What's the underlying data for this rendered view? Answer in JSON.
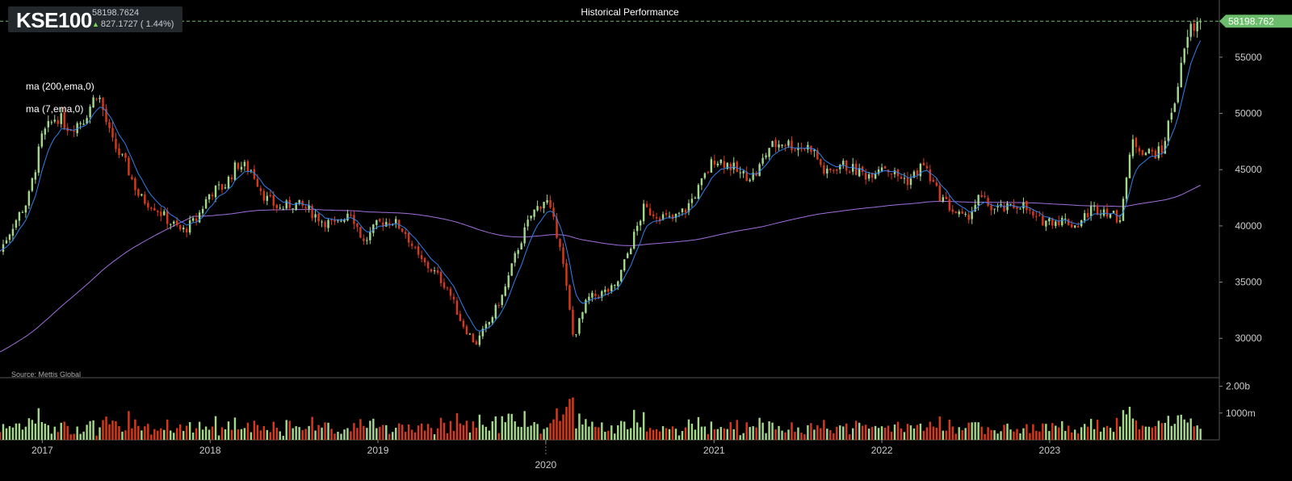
{
  "ticker": {
    "symbol": "KSE100",
    "price": "58198.7624",
    "change": "827.1727 ( 1.44%)",
    "direction_icon": "arrow-up-icon",
    "up_color": "#7ed957"
  },
  "title": "Historical Performance",
  "legend": [
    "ma (200,ema,0)",
    "ma (7,ema,0)"
  ],
  "source": "Source: Mettis Global",
  "last_price_label": "58198.762",
  "colors": {
    "up": "#a3d78c",
    "down": "#d8391b",
    "ma7": "#2f80ed",
    "ma200": "#a36ee0",
    "last_price": "#6bbd6b",
    "axis_text": "#cccccc",
    "background": "#000000"
  },
  "chart_data": {
    "type": "candlestick",
    "title": "Historical Performance",
    "price_ticks": [
      30000,
      35000,
      40000,
      45000,
      50000,
      55000
    ],
    "price_range": [
      26500,
      59800
    ],
    "volume_ticks": [
      "1000m",
      "2.00b"
    ],
    "volume_range": [
      0,
      2200
    ],
    "x_labels": [
      "2017",
      "2018",
      "2019",
      "2020",
      "2021",
      "2022",
      "2023"
    ],
    "last_price": 58198.7624,
    "price_path": [
      [
        "2016-10",
        37800
      ],
      [
        "2016-11",
        40300
      ],
      [
        "2016-12",
        42300
      ],
      [
        "2017-01",
        48000
      ],
      [
        "2017-02",
        49800
      ],
      [
        "2017-03",
        48700
      ],
      [
        "2017-04",
        49500
      ],
      [
        "2017-05",
        52000
      ],
      [
        "2017-06",
        47500
      ],
      [
        "2017-07",
        45500
      ],
      [
        "2017-08",
        42500
      ],
      [
        "2017-09",
        41800
      ],
      [
        "2017-10",
        40500
      ],
      [
        "2017-11",
        39500
      ],
      [
        "2017-12",
        40500
      ],
      [
        "2018-01",
        43000
      ],
      [
        "2018-02",
        43500
      ],
      [
        "2018-03",
        45500
      ],
      [
        "2018-04",
        45000
      ],
      [
        "2018-05",
        42500
      ],
      [
        "2018-06",
        41500
      ],
      [
        "2018-07",
        42000
      ],
      [
        "2018-08",
        41500
      ],
      [
        "2018-09",
        40500
      ],
      [
        "2018-10",
        40000
      ],
      [
        "2018-11",
        41500
      ],
      [
        "2018-12",
        38500
      ],
      [
        "2019-01",
        40200
      ],
      [
        "2019-02",
        40500
      ],
      [
        "2019-03",
        39500
      ],
      [
        "2019-04",
        37000
      ],
      [
        "2019-05",
        36000
      ],
      [
        "2019-06",
        34500
      ],
      [
        "2019-07",
        31500
      ],
      [
        "2019-08",
        29500
      ],
      [
        "2019-09",
        31500
      ],
      [
        "2019-10",
        34000
      ],
      [
        "2019-11",
        38000
      ],
      [
        "2019-12",
        41000
      ],
      [
        "2020-01",
        42500
      ],
      [
        "2020-02",
        38500
      ],
      [
        "2020-03",
        30000
      ],
      [
        "2020-04",
        33500
      ],
      [
        "2020-05",
        34000
      ],
      [
        "2020-06",
        34500
      ],
      [
        "2020-07",
        38000
      ],
      [
        "2020-08",
        41500
      ],
      [
        "2020-09",
        41000
      ],
      [
        "2020-10",
        40500
      ],
      [
        "2020-11",
        41500
      ],
      [
        "2020-12",
        43500
      ],
      [
        "2021-01",
        46000
      ],
      [
        "2021-02",
        45500
      ],
      [
        "2021-03",
        44500
      ],
      [
        "2021-04",
        44500
      ],
      [
        "2021-05",
        47000
      ],
      [
        "2021-06",
        47500
      ],
      [
        "2021-07",
        47000
      ],
      [
        "2021-08",
        47000
      ],
      [
        "2021-09",
        44500
      ],
      [
        "2021-10",
        45500
      ],
      [
        "2021-11",
        45000
      ],
      [
        "2021-12",
        44500
      ],
      [
        "2022-01",
        45500
      ],
      [
        "2022-02",
        44500
      ],
      [
        "2022-03",
        44000
      ],
      [
        "2022-04",
        45500
      ],
      [
        "2022-05",
        43000
      ],
      [
        "2022-06",
        41500
      ],
      [
        "2022-07",
        40500
      ],
      [
        "2022-08",
        42500
      ],
      [
        "2022-09",
        41500
      ],
      [
        "2022-10",
        41500
      ],
      [
        "2022-11",
        42000
      ],
      [
        "2022-12",
        40500
      ],
      [
        "2023-01",
        40500
      ],
      [
        "2023-02",
        40500
      ],
      [
        "2023-03",
        40000
      ],
      [
        "2023-04",
        41500
      ],
      [
        "2023-05",
        41500
      ],
      [
        "2023-06",
        40500
      ],
      [
        "2023-07",
        47500
      ],
      [
        "2023-08",
        46500
      ],
      [
        "2023-09",
        46500
      ],
      [
        "2023-10",
        51500
      ],
      [
        "2023-11",
        57500
      ],
      [
        "2023-12",
        58200
      ]
    ]
  }
}
